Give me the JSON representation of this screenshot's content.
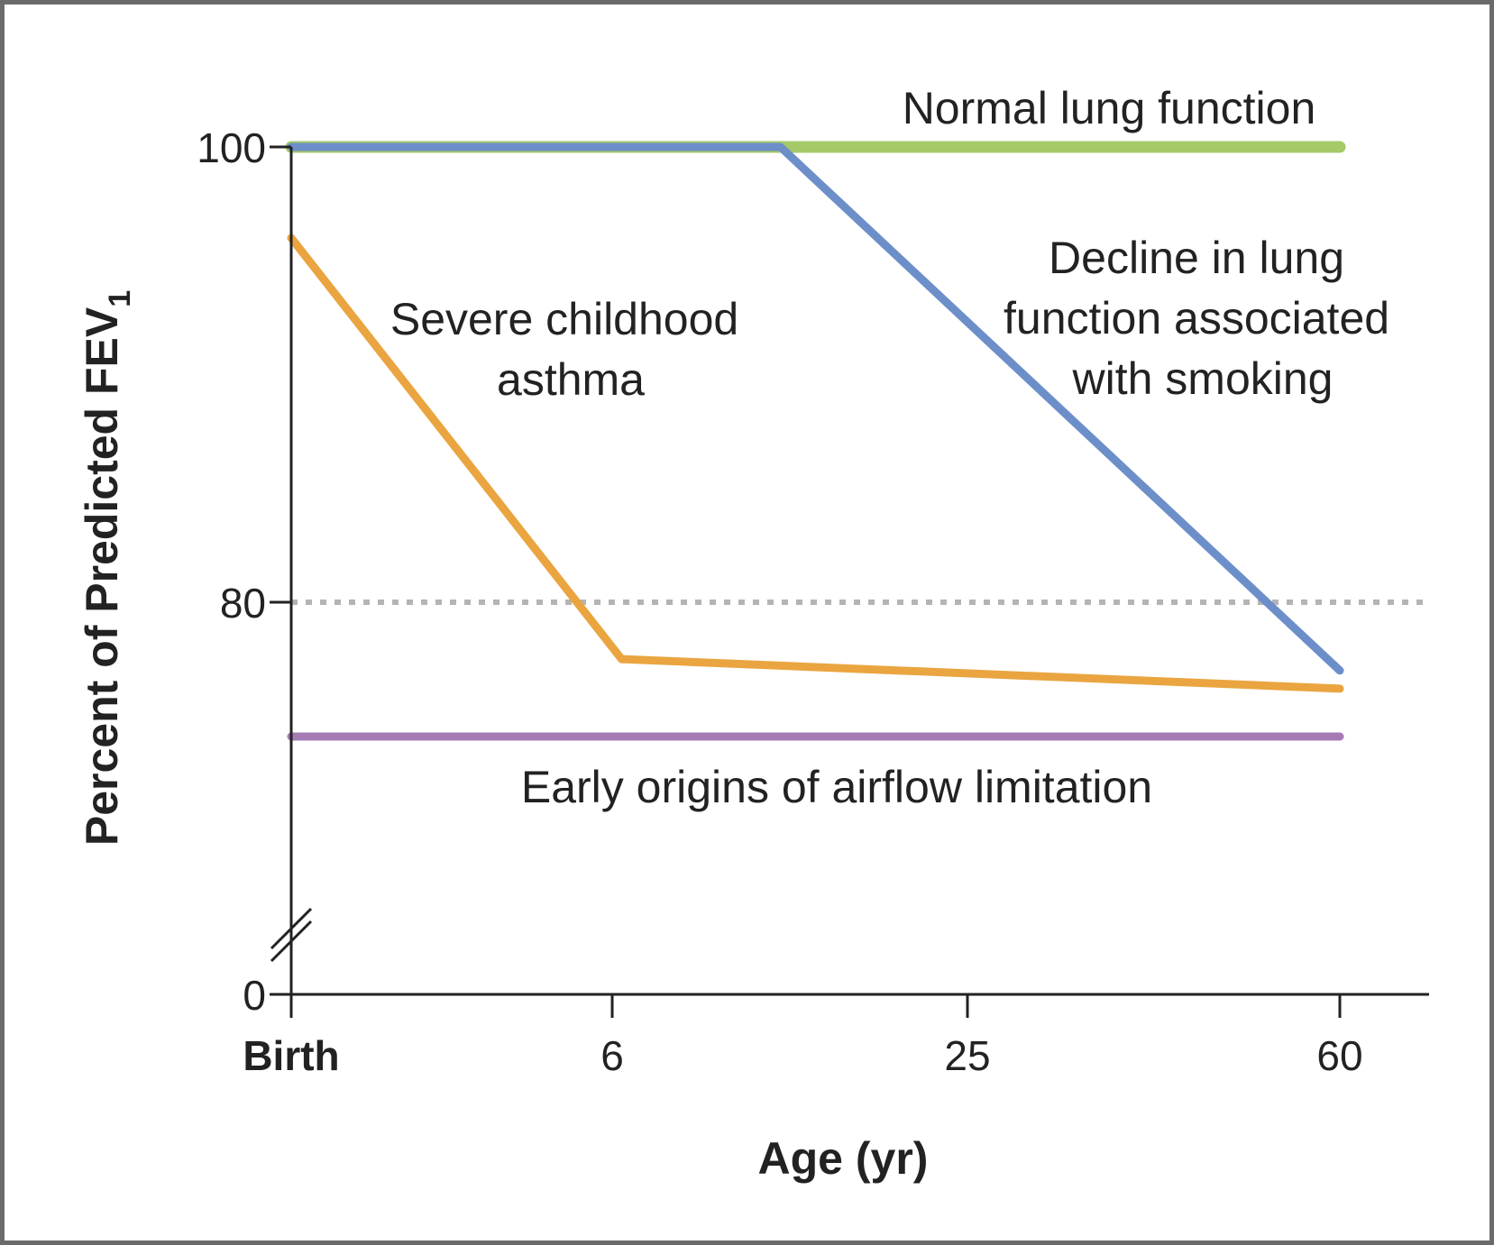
{
  "chart_data": {
    "type": "line",
    "xlabel": "Age (yr)",
    "ylabel": "Percent of Predicted FEV",
    "ylabel_subscript": "1",
    "x_ticks": [
      {
        "value": 0,
        "label": "Birth"
      },
      {
        "value": 6,
        "label": "6"
      },
      {
        "value": 25,
        "label": "25"
      },
      {
        "value": 60,
        "label": "60"
      }
    ],
    "y_ticks": [
      {
        "value": 0,
        "label": "0"
      },
      {
        "value": 80,
        "label": "80"
      },
      {
        "value": 100,
        "label": "100"
      }
    ],
    "y_axis_break": true,
    "reference_line": {
      "y": 80,
      "style": "dotted",
      "color": "#b4b4b4"
    },
    "grid": false,
    "series": [
      {
        "name": "Normal lung function",
        "color": "#a6c96a",
        "points": [
          {
            "x": 0,
            "y": 100
          },
          {
            "x": 60,
            "y": 100
          }
        ]
      },
      {
        "name": "Decline in lung function associated with smoking",
        "name_lines": [
          "Decline in lung",
          "function associated",
          "with smoking"
        ],
        "color": "#6c8fc9",
        "points": [
          {
            "x": 0,
            "y": 100
          },
          {
            "x": 15,
            "y": 100
          },
          {
            "x": 60,
            "y": 77
          }
        ]
      },
      {
        "name": "Severe childhood asthma",
        "name_lines": [
          "Severe childhood",
          "asthma"
        ],
        "color": "#eaa540",
        "points": [
          {
            "x": 0,
            "y": 96
          },
          {
            "x": 6.5,
            "y": 77.5
          },
          {
            "x": 60,
            "y": 76.2
          }
        ]
      },
      {
        "name": "Early origins of airflow limitation",
        "color": "#a67bb5",
        "points": [
          {
            "x": 0,
            "y": 74.1
          },
          {
            "x": 60,
            "y": 74.1
          }
        ]
      }
    ]
  }
}
